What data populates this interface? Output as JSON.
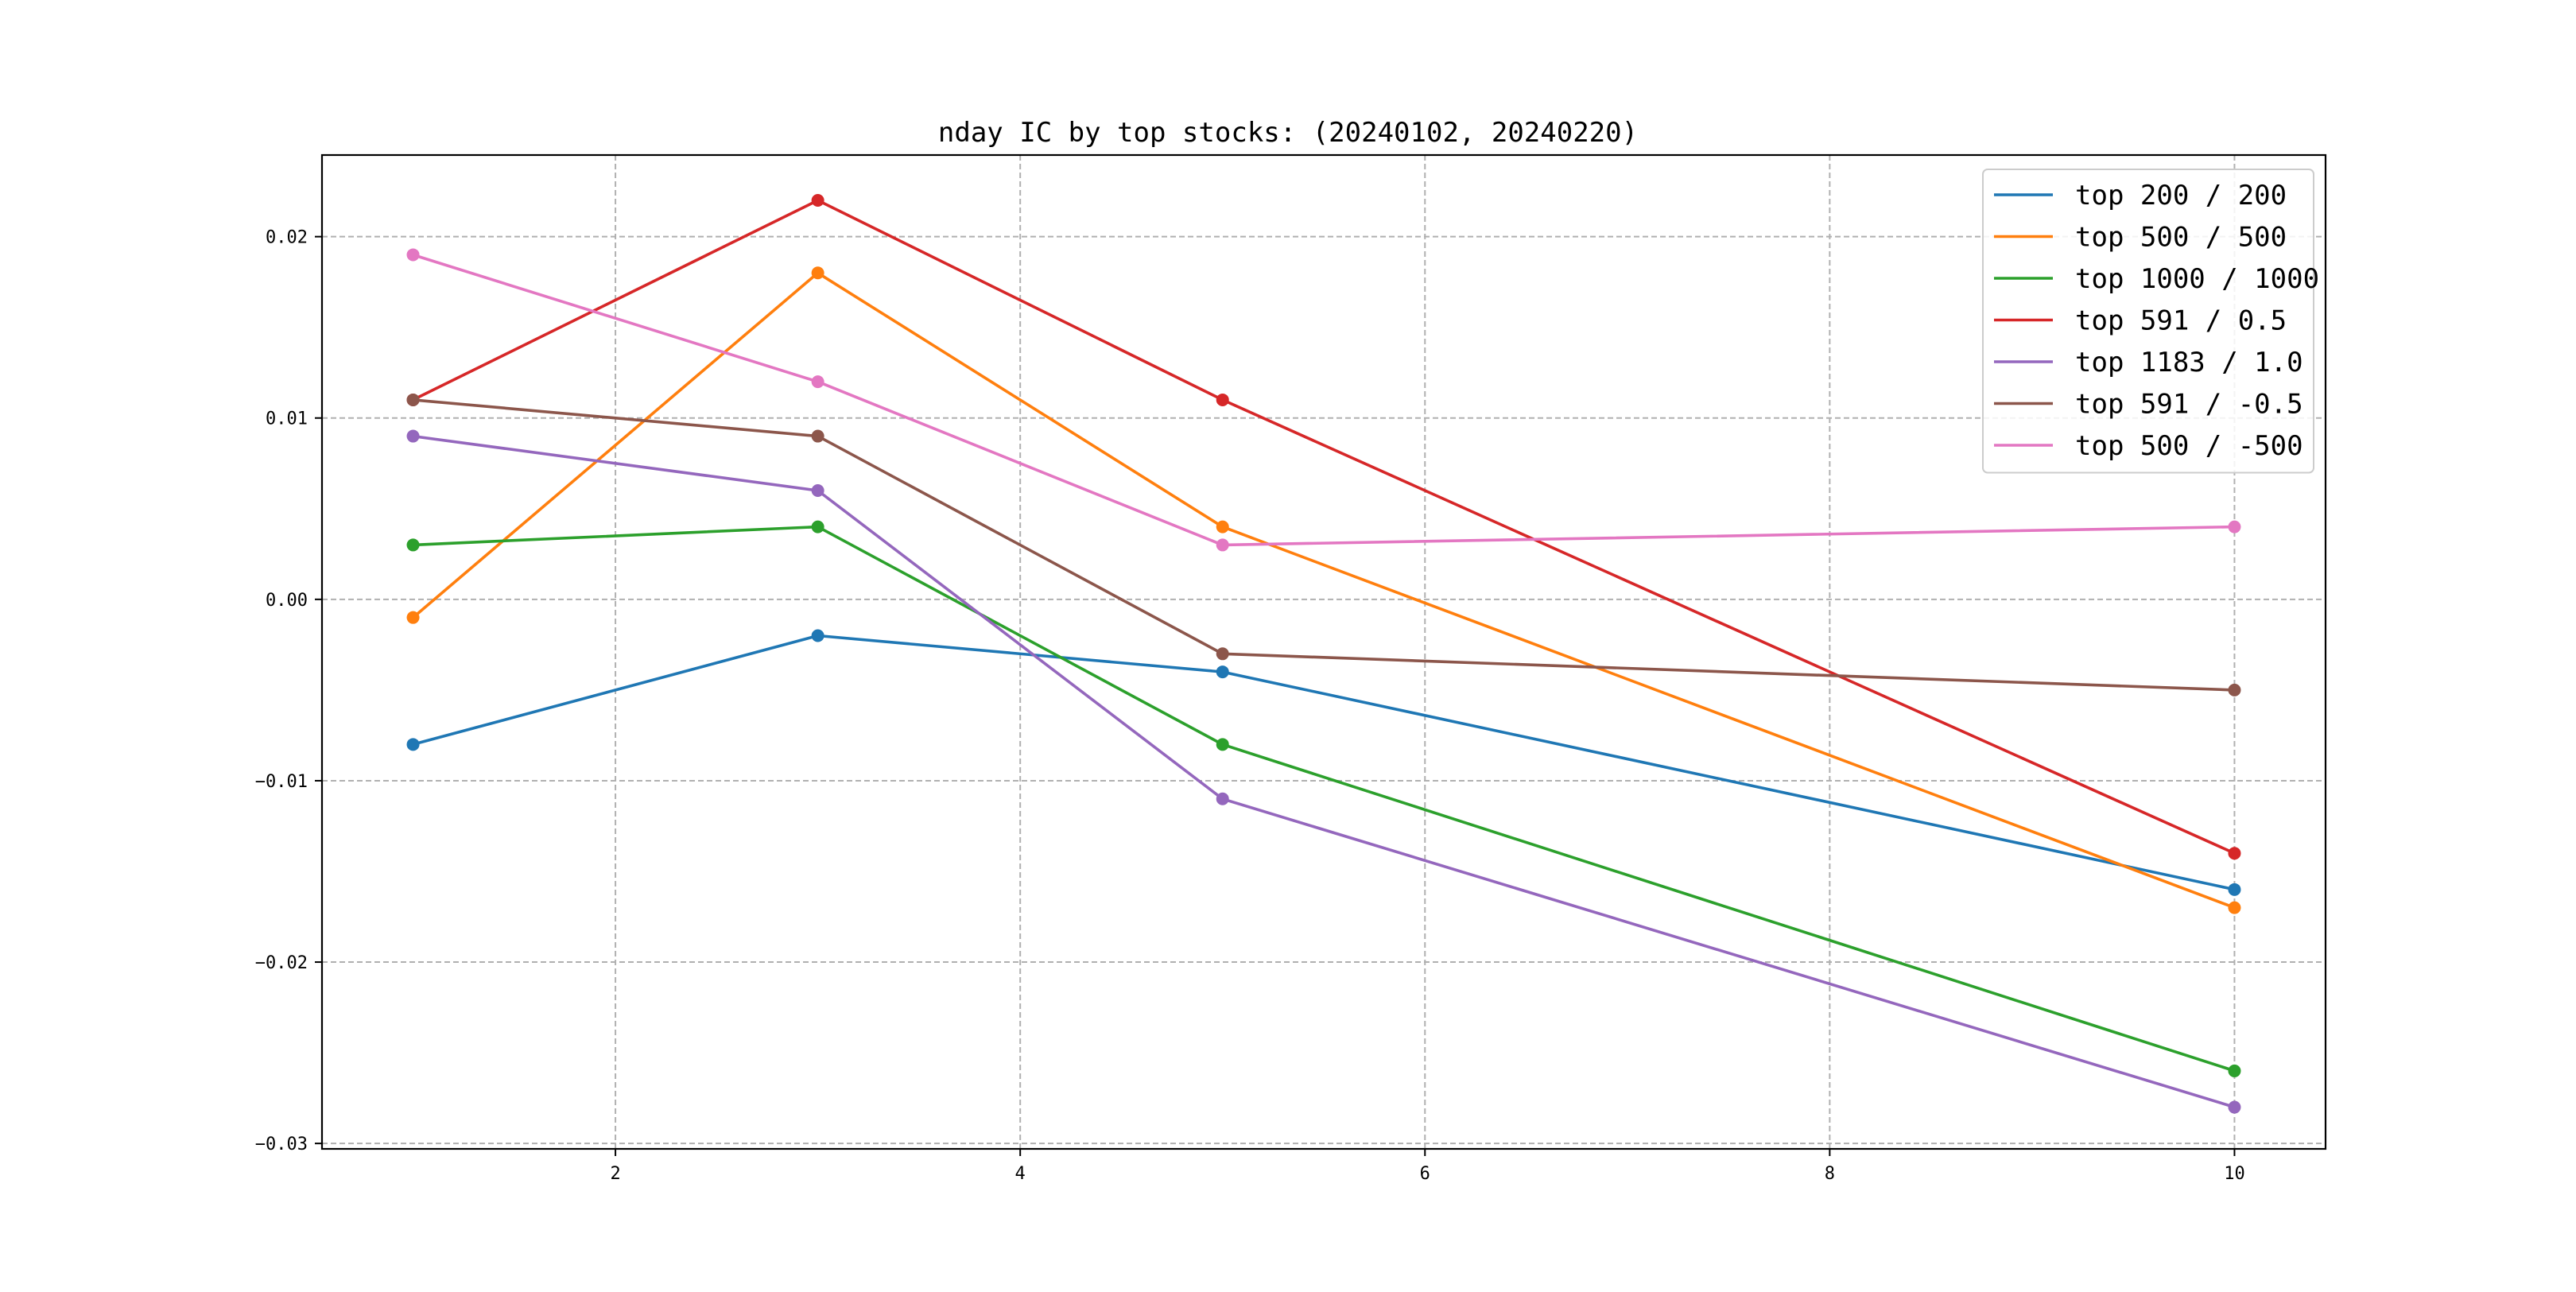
{
  "chart_data": {
    "type": "line",
    "title": "nday IC by top stocks: (20240102, 20240220)",
    "xlabel": "",
    "ylabel": "",
    "x": [
      1,
      3,
      5,
      10
    ],
    "xlim": [
      0.55,
      10.45
    ],
    "ylim": [
      -0.0303,
      0.0245
    ],
    "x_ticks": [
      2,
      4,
      6,
      8,
      10
    ],
    "x_tick_labels": [
      "2",
      "4",
      "6",
      "8",
      "10"
    ],
    "y_ticks": [
      0.02,
      0.01,
      0.0,
      -0.01,
      -0.02,
      -0.03
    ],
    "y_tick_labels": [
      "0.02",
      "0.01",
      "0.00",
      "−0.01",
      "−0.02",
      "−0.03"
    ],
    "grid": true,
    "legend_position": "top-right",
    "series": [
      {
        "name": "top 200 / 200",
        "color": "#1f77b4",
        "values": [
          -0.008,
          -0.002,
          -0.004,
          -0.016
        ]
      },
      {
        "name": "top 500 / 500",
        "color": "#ff7f0e",
        "values": [
          -0.001,
          0.018,
          0.004,
          -0.017
        ]
      },
      {
        "name": "top 1000 / 1000",
        "color": "#2ca02c",
        "values": [
          0.003,
          0.004,
          -0.008,
          -0.026
        ]
      },
      {
        "name": "top 591 / 0.5",
        "color": "#d62728",
        "values": [
          0.011,
          0.022,
          0.011,
          -0.014
        ]
      },
      {
        "name": "top 1183 / 1.0",
        "color": "#9467bd",
        "values": [
          0.009,
          0.006,
          -0.011,
          -0.028
        ]
      },
      {
        "name": "top 591 / -0.5",
        "color": "#8c564b",
        "values": [
          0.011,
          0.009,
          -0.003,
          -0.005
        ]
      },
      {
        "name": "top 500 / -500",
        "color": "#e377c2",
        "values": [
          0.019,
          0.012,
          0.003,
          0.004
        ]
      }
    ]
  }
}
